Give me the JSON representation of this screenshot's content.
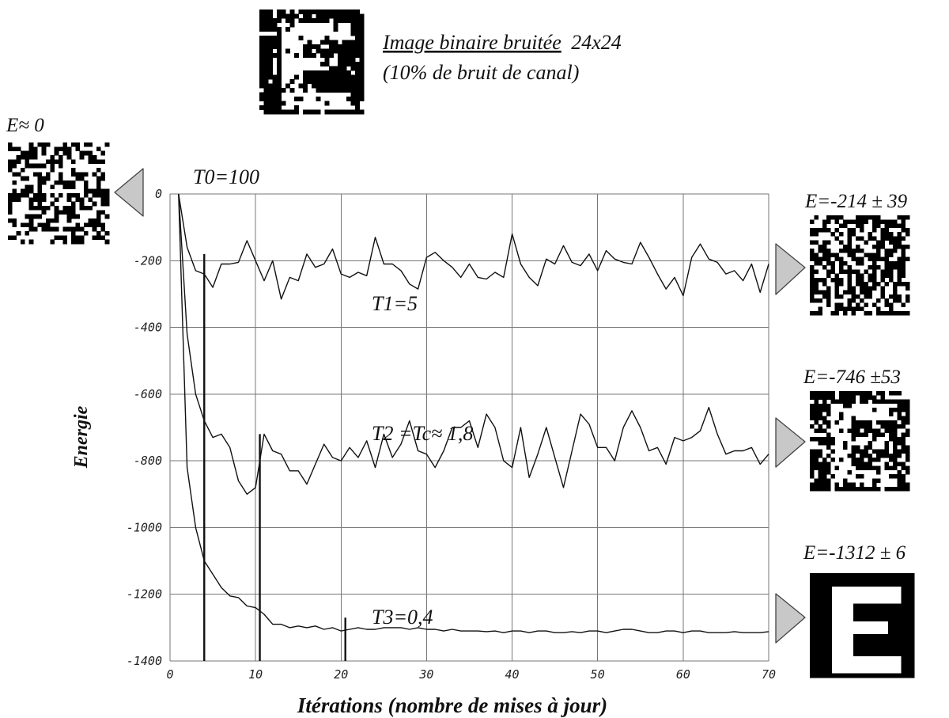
{
  "chart_data": {
    "type": "line",
    "title": "",
    "xlabel": "Itérations (nombre de mises à jour)",
    "ylabel": "Energie",
    "xlim": [
      0,
      70
    ],
    "ylim": [
      -1400,
      0
    ],
    "x_ticks": [
      "0",
      "10",
      "20",
      "30",
      "40",
      "50",
      "60",
      "70"
    ],
    "y_ticks": [
      "0",
      "-200",
      "-400",
      "-600",
      "-800",
      "-1000",
      "-1200",
      "-1400"
    ],
    "grid": true,
    "series": [
      {
        "name": "T1=5",
        "x": [
          1,
          2,
          3,
          4,
          5,
          6,
          7,
          8,
          9,
          10,
          11,
          12,
          13,
          14,
          15,
          16,
          17,
          18,
          19,
          20,
          21,
          22,
          23,
          24,
          25,
          26,
          27,
          28,
          29,
          30,
          31,
          32,
          33,
          34,
          35,
          36,
          37,
          38,
          39,
          40,
          41,
          42,
          43,
          44,
          45,
          46,
          47,
          48,
          49,
          50,
          51,
          52,
          53,
          54,
          55,
          56,
          57,
          58,
          59,
          60,
          61,
          62,
          63,
          64,
          65,
          66,
          67,
          68,
          69,
          70
        ],
        "values": [
          0,
          -160,
          -230,
          -240,
          -280,
          -210,
          -210,
          -205,
          -140,
          -200,
          -260,
          -200,
          -315,
          -250,
          -260,
          -180,
          -220,
          -210,
          -165,
          -240,
          -250,
          -235,
          -245,
          -130,
          -210,
          -210,
          -230,
          -270,
          -285,
          -190,
          -175,
          -200,
          -220,
          -250,
          -210,
          -250,
          -255,
          -235,
          -250,
          -120,
          -210,
          -250,
          -275,
          -195,
          -210,
          -155,
          -205,
          -215,
          -180,
          -230,
          -170,
          -195,
          -205,
          -210,
          -145,
          -190,
          -240,
          -285,
          -250,
          -305,
          -190,
          -150,
          -195,
          -205,
          -240,
          -230,
          -260,
          -210,
          -295,
          -210
        ]
      },
      {
        "name": "T2=Tc≈1,8",
        "x": [
          1,
          2,
          3,
          4,
          5,
          6,
          7,
          8,
          9,
          10,
          11,
          12,
          13,
          14,
          15,
          16,
          17,
          18,
          19,
          20,
          21,
          22,
          23,
          24,
          25,
          26,
          27,
          28,
          29,
          30,
          31,
          32,
          33,
          34,
          35,
          36,
          37,
          38,
          39,
          40,
          41,
          42,
          43,
          44,
          45,
          46,
          47,
          48,
          49,
          50,
          51,
          52,
          53,
          54,
          55,
          56,
          57,
          58,
          59,
          60,
          61,
          62,
          63,
          64,
          65,
          66,
          67,
          68,
          69,
          70
        ],
        "values": [
          0,
          -420,
          -600,
          -680,
          -730,
          -720,
          -760,
          -860,
          -900,
          -880,
          -720,
          -770,
          -780,
          -830,
          -830,
          -870,
          -810,
          -750,
          -790,
          -800,
          -760,
          -790,
          -740,
          -820,
          -720,
          -790,
          -750,
          -680,
          -770,
          -780,
          -820,
          -770,
          -700,
          -700,
          -680,
          -760,
          -660,
          -700,
          -800,
          -820,
          -700,
          -850,
          -780,
          -700,
          -790,
          -880,
          -770,
          -660,
          -690,
          -760,
          -760,
          -800,
          -700,
          -650,
          -700,
          -770,
          -760,
          -810,
          -730,
          -740,
          -730,
          -710,
          -640,
          -720,
          -780,
          -770,
          -770,
          -760,
          -810,
          -780
        ]
      },
      {
        "name": "T3=0,4",
        "x": [
          1,
          2,
          3,
          4,
          5,
          6,
          7,
          8,
          9,
          10,
          11,
          12,
          13,
          14,
          15,
          16,
          17,
          18,
          19,
          20,
          21,
          22,
          23,
          24,
          25,
          26,
          27,
          28,
          29,
          30,
          31,
          32,
          33,
          34,
          35,
          36,
          37,
          38,
          39,
          40,
          41,
          42,
          43,
          44,
          45,
          46,
          47,
          48,
          49,
          50,
          51,
          52,
          53,
          54,
          55,
          56,
          57,
          58,
          59,
          60,
          61,
          62,
          63,
          64,
          65,
          66,
          67,
          68,
          69,
          70
        ],
        "values": [
          0,
          -820,
          -1000,
          -1100,
          -1140,
          -1180,
          -1205,
          -1210,
          -1235,
          -1240,
          -1260,
          -1290,
          -1290,
          -1300,
          -1295,
          -1300,
          -1295,
          -1305,
          -1300,
          -1310,
          -1305,
          -1300,
          -1305,
          -1305,
          -1300,
          -1300,
          -1300,
          -1305,
          -1300,
          -1305,
          -1305,
          -1310,
          -1305,
          -1310,
          -1310,
          -1310,
          -1312,
          -1310,
          -1315,
          -1310,
          -1310,
          -1315,
          -1310,
          -1310,
          -1315,
          -1315,
          -1312,
          -1315,
          -1310,
          -1310,
          -1315,
          -1310,
          -1305,
          -1305,
          -1310,
          -1315,
          -1315,
          -1310,
          -1310,
          -1315,
          -1310,
          -1310,
          -1315,
          -1315,
          -1315,
          -1312,
          -1315,
          -1315,
          -1315,
          -1312
        ]
      }
    ],
    "vertical_markers": [
      {
        "x": 4,
        "from": -180,
        "to": -1400
      },
      {
        "x": 10.5,
        "from": -720,
        "to": -1400
      },
      {
        "x": 20.5,
        "from": -1270,
        "to": -1400
      }
    ]
  },
  "annotations": {
    "input_caption_1": "Image binaire bruitée",
    "input_caption_size": "24x24",
    "input_caption_2": "(10% de bruit de canal)",
    "e_initial": "E≈ 0",
    "t0": "T0=100",
    "t1": "T1=5",
    "t2": "T2 =Tc≈ 1,8",
    "t3": "T3=0,4",
    "e1": "E=-214 ± 39",
    "e2": "E=-746 ±53",
    "e3": "E=-1312 ± 6"
  }
}
